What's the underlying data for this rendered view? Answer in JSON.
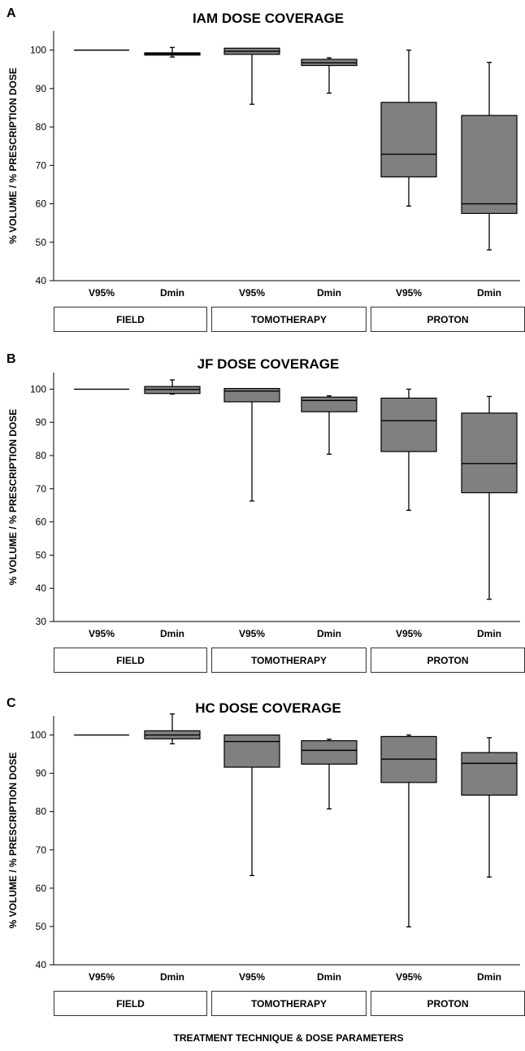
{
  "xlabel": "TREATMENT TECHNIQUE & DOSE PARAMETERS",
  "chart_data": [
    {
      "type": "box",
      "panel_label": "A",
      "title": "IAM DOSE COVERAGE",
      "ylabel": "% VOLUME / % PRESCRIPTION DOSE",
      "ylim": [
        40,
        100
      ],
      "yticks": [
        40,
        50,
        60,
        70,
        80,
        90,
        100
      ],
      "categories": [
        "V95%",
        "Dmin",
        "V95%",
        "Dmin",
        "V95%",
        "Dmin"
      ],
      "groups": [
        "FIELD",
        "TOMOTHERAPY",
        "PROTON"
      ],
      "boxes": [
        {
          "min": 100,
          "q1": 100,
          "median": 100,
          "q3": 100,
          "max": 100
        },
        {
          "min": 98.2,
          "q1": 98.7,
          "median": 99.0,
          "q3": 99.3,
          "max": 100.7
        },
        {
          "min": 85.9,
          "q1": 98.9,
          "median": 99.7,
          "q3": 100.5,
          "max": 100.5
        },
        {
          "min": 88.8,
          "q1": 96.0,
          "median": 96.7,
          "q3": 97.6,
          "max": 98.0
        },
        {
          "min": 59.4,
          "q1": 67.0,
          "median": 72.9,
          "q3": 86.4,
          "max": 100.0
        },
        {
          "min": 48.0,
          "q1": 57.5,
          "median": 60.0,
          "q3": 83.0,
          "max": 96.8
        }
      ]
    },
    {
      "type": "box",
      "panel_label": "B",
      "title": "JF DOSE COVERAGE",
      "ylabel": "% VOLUME / % PRESCRIPTION DOSE",
      "ylim": [
        30,
        105
      ],
      "yticks": [
        30,
        40,
        50,
        60,
        70,
        80,
        90,
        100
      ],
      "categories": [
        "V95%",
        "Dmin",
        "V95%",
        "Dmin",
        "V95%",
        "Dmin"
      ],
      "groups": [
        "FIELD",
        "TOMOTHERAPY",
        "PROTON"
      ],
      "boxes": [
        {
          "min": 100,
          "q1": 100,
          "median": 100,
          "q3": 100,
          "max": 100
        },
        {
          "min": 98.5,
          "q1": 98.7,
          "median": 99.9,
          "q3": 100.8,
          "max": 102.8
        },
        {
          "min": 66.3,
          "q1": 96.2,
          "median": 99.4,
          "q3": 100.2,
          "max": 100.2
        },
        {
          "min": 80.4,
          "q1": 93.2,
          "median": 96.6,
          "q3": 97.6,
          "max": 98.0
        },
        {
          "min": 63.5,
          "q1": 81.2,
          "median": 90.5,
          "q3": 97.3,
          "max": 100.0
        },
        {
          "min": 36.7,
          "q1": 68.8,
          "median": 77.6,
          "q3": 92.8,
          "max": 97.8
        }
      ]
    },
    {
      "type": "box",
      "panel_label": "C",
      "title": "HC DOSE COVERAGE",
      "ylabel": "% VOLUME / % PRESCRIPTION DOSE",
      "ylim": [
        40,
        105
      ],
      "yticks": [
        40,
        50,
        60,
        70,
        80,
        90,
        100
      ],
      "categories": [
        "V95%",
        "Dmin",
        "V95%",
        "Dmin",
        "V95%",
        "Dmin"
      ],
      "groups": [
        "FIELD",
        "TOMOTHERAPY",
        "PROTON"
      ],
      "boxes": [
        {
          "min": 100,
          "q1": 100,
          "median": 100,
          "q3": 100,
          "max": 100
        },
        {
          "min": 97.7,
          "q1": 99.0,
          "median": 100.0,
          "q3": 101.1,
          "max": 105.5
        },
        {
          "min": 63.3,
          "q1": 91.6,
          "median": 98.3,
          "q3": 100.0,
          "max": 100.0
        },
        {
          "min": 80.7,
          "q1": 92.4,
          "median": 96.0,
          "q3": 98.5,
          "max": 98.9
        },
        {
          "min": 49.9,
          "q1": 87.6,
          "median": 93.7,
          "q3": 99.6,
          "max": 100.0
        },
        {
          "min": 62.9,
          "q1": 84.3,
          "median": 92.6,
          "q3": 95.4,
          "max": 99.3
        }
      ]
    }
  ]
}
